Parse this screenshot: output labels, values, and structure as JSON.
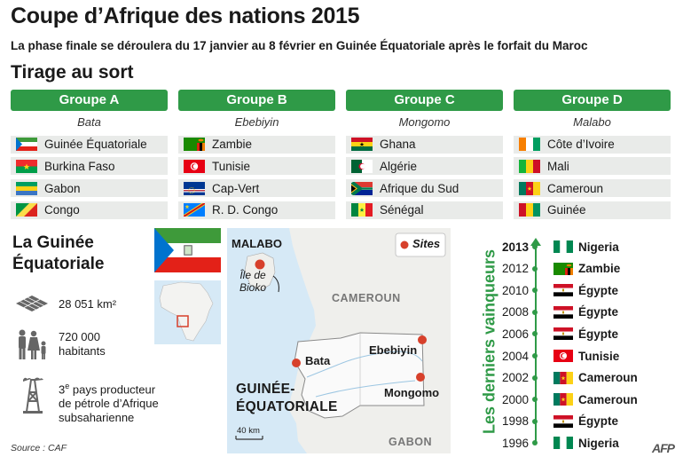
{
  "title": "Coupe d’Afrique des nations 2015",
  "subtitle": "La phase finale se déroulera du 17 janvier au 8 février en Guinée Équatoriale après le forfait du Maroc",
  "section_title": "Tirage au sort",
  "groups": [
    {
      "name": "Groupe A",
      "city": "Bata",
      "teams": [
        "Guinée Équatoriale",
        "Burkina Faso",
        "Gabon",
        "Congo"
      ]
    },
    {
      "name": "Groupe B",
      "city": "Ebebiyin",
      "teams": [
        "Zambie",
        "Tunisie",
        "Cap-Vert",
        "R. D. Congo"
      ]
    },
    {
      "name": "Groupe C",
      "city": "Mongomo",
      "teams": [
        "Ghana",
        "Algérie",
        "Afrique du Sud",
        "Sénégal"
      ]
    },
    {
      "name": "Groupe D",
      "city": "Malabo",
      "teams": [
        "Côte d’Ivoire",
        "Mali",
        "Cameroun",
        "Guinée"
      ]
    }
  ],
  "gq": {
    "title_line1": "La Guinée",
    "title_line2": "Équatoriale",
    "area": "28 051 km²",
    "pop_line1": "720 000",
    "pop_line2": "habitants",
    "oil_sup": "e",
    "oil_num": "3",
    "oil_line1": " pays  producteur",
    "oil_line2": "de pétrole d’Afrique",
    "oil_line3": "subsaharienne"
  },
  "map": {
    "legend": "Sites",
    "malabo": "MALABO",
    "bioko_line1": "Île de",
    "bioko_line2": "Bioko",
    "cameroun": "CAMEROUN",
    "gabon": "GABON",
    "bata": "Bata",
    "ebebiyin": "Ebebiyin",
    "mongomo": "Mongomo",
    "country_line1": "GUINÉE-",
    "country_line2": "ÉQUATORIALE",
    "scale": "40 km"
  },
  "winners_title": "Les derniers vainqueurs",
  "winners": [
    {
      "year": "2013",
      "team": "Nigeria"
    },
    {
      "year": "2012",
      "team": "Zambie"
    },
    {
      "year": "2010",
      "team": "Égypte"
    },
    {
      "year": "2008",
      "team": "Égypte"
    },
    {
      "year": "2006",
      "team": "Égypte"
    },
    {
      "year": "2004",
      "team": "Tunisie"
    },
    {
      "year": "2002",
      "team": "Cameroun"
    },
    {
      "year": "2000",
      "team": "Cameroun"
    },
    {
      "year": "1998",
      "team": "Égypte"
    },
    {
      "year": "1996",
      "team": "Nigeria"
    }
  ],
  "source": "Source : CAF",
  "credit": "AFP",
  "colors": {
    "accent": "#2f9a47",
    "site_marker": "#d7402b",
    "row_bg": "#e9ebe9"
  }
}
